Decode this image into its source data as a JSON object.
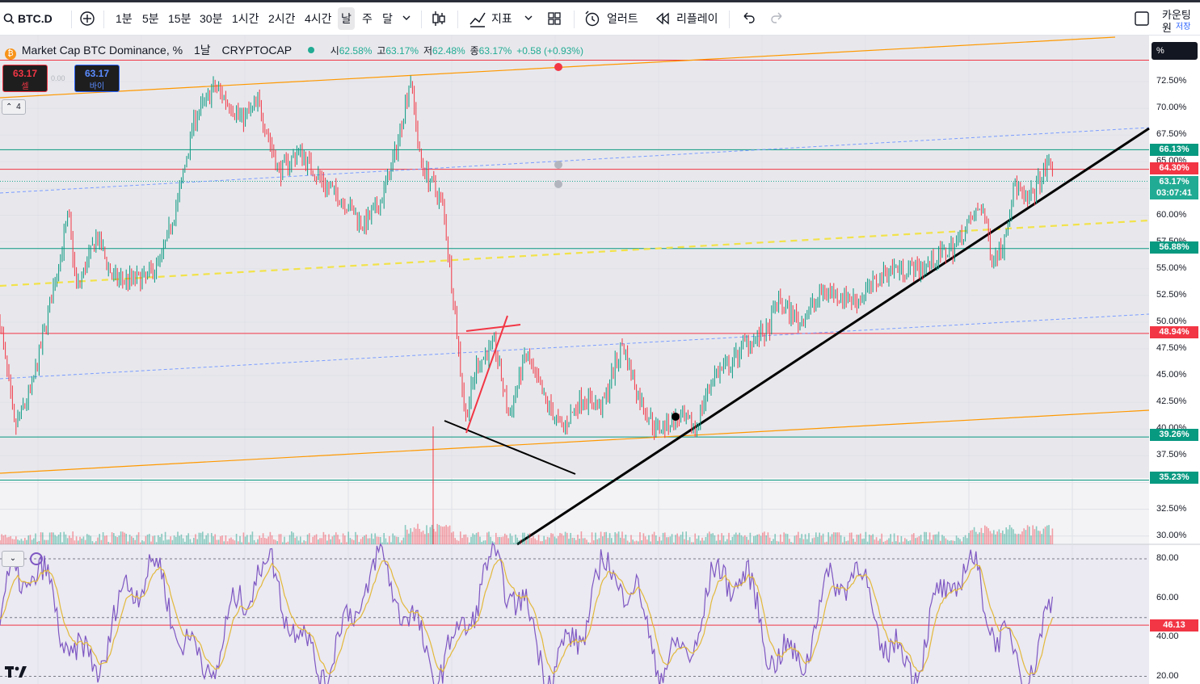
{
  "toolbar": {
    "symbol": "BTC.D",
    "intervals": [
      "1분",
      "5분",
      "15분",
      "30분",
      "1시간",
      "2시간",
      "4시간",
      "날",
      "주",
      "달"
    ],
    "active_interval": "날",
    "indicators_label": "지표",
    "alert_label": "얼러트",
    "replay_label": "리플레이",
    "countdown_label": "카운팅원",
    "save_label": "저장"
  },
  "legend": {
    "title": "Market Cap BTC Dominance, %",
    "interval": "1날",
    "source": "CRYPTOCAP",
    "o_key": "시",
    "o_val": "62.58%",
    "h_key": "고",
    "h_val": "63.17%",
    "l_key": "저",
    "l_val": "62.48%",
    "c_key": "종",
    "c_val": "63.17%",
    "change": "+0.58 (+0.93%)"
  },
  "trade": {
    "sell_price": "63.17",
    "sell_label": "셀",
    "spread": "0.00",
    "buy_price": "63.17",
    "buy_label": "바이"
  },
  "collapse_count": "4",
  "price_axis": {
    "unit": "%",
    "ticks": [
      "72.50%",
      "70.00%",
      "67.50%",
      "65.00%",
      "60.00%",
      "57.50%",
      "55.00%",
      "52.50%",
      "50.00%",
      "47.50%",
      "45.00%",
      "42.50%",
      "40.00%",
      "37.50%",
      "32.50%",
      "30.00%"
    ],
    "tags": [
      {
        "label": "66.13%",
        "color": "#089981"
      },
      {
        "label": "64.30%",
        "color": "#f23645"
      },
      {
        "label": "63.17%",
        "color": "#22ab94"
      },
      {
        "label": "03:07:41",
        "color": "#22ab94"
      },
      {
        "label": "56.88%",
        "color": "#089981"
      },
      {
        "label": "48.94%",
        "color": "#f23645"
      },
      {
        "label": "39.26%",
        "color": "#089981"
      },
      {
        "label": "35.23%",
        "color": "#089981"
      }
    ]
  },
  "rsi_axis": {
    "ticks": [
      "80.00",
      "60.00",
      "40.00",
      "20.00"
    ],
    "tag": {
      "label": "46.13",
      "color": "#f23645"
    }
  },
  "colors": {
    "up": "#089981",
    "down": "#f23645",
    "rsi": "#7e57c2",
    "rsi_ma": "#e2b93b",
    "trend_orange": "#ff9800"
  }
}
